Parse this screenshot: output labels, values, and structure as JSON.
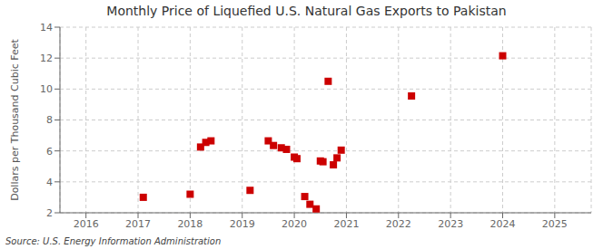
{
  "chart_data": {
    "type": "scatter",
    "title": "Monthly Price of Liquefied U.S. Natural Gas Exports to Pakistan",
    "y_label": "Dollars per Thousand Cubic Feet",
    "annotations": [
      "Source: U.S. Energy Information Administration"
    ],
    "color": "#cc0000",
    "marker": "square",
    "grid": true,
    "xlim": [
      2015.5,
      2025.7
    ],
    "ylim": [
      2,
      14
    ],
    "xticks": [
      2016,
      2017,
      2018,
      2019,
      2020,
      2021,
      2022,
      2023,
      2024,
      2025
    ],
    "yticks": [
      2,
      4,
      6,
      8,
      10,
      12,
      14
    ],
    "x": [
      2017.1,
      2018.0,
      2018.2,
      2018.3,
      2018.4,
      2019.15,
      2019.5,
      2019.6,
      2019.75,
      2019.85,
      2020.0,
      2020.05,
      2020.2,
      2020.3,
      2020.42,
      2020.5,
      2020.55,
      2020.65,
      2020.75,
      2020.82,
      2020.9,
      2022.25,
      2024.0
    ],
    "values": [
      3.0,
      3.2,
      6.25,
      6.55,
      6.65,
      3.45,
      6.65,
      6.35,
      6.2,
      6.1,
      5.6,
      5.5,
      3.05,
      2.55,
      2.25,
      5.35,
      5.3,
      10.5,
      5.1,
      5.55,
      6.05,
      9.55,
      12.15
    ]
  }
}
